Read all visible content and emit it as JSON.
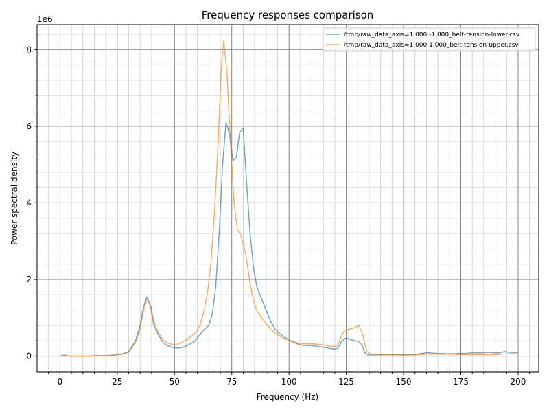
{
  "chart_data": {
    "type": "line",
    "title": "Frequency responses comparison",
    "xlabel": "Frequency (Hz)",
    "ylabel": "Power spectral density",
    "y_scale_label": "1e6",
    "xlim": [
      -10,
      209
    ],
    "ylim": [
      -0.42,
      8.65
    ],
    "x_ticks": [
      0,
      25,
      50,
      75,
      100,
      125,
      150,
      175,
      200
    ],
    "x_tick_labels": [
      "0",
      "25",
      "50",
      "75",
      "100",
      "125",
      "150",
      "175",
      "200"
    ],
    "y_ticks": [
      0,
      2,
      4,
      6,
      8
    ],
    "y_tick_labels": [
      "0",
      "2",
      "4",
      "6",
      "8"
    ],
    "grid": true,
    "legend_position": "top-right",
    "series": [
      {
        "name": "/tmp/raw_data_axis=1.000,-1.000_belt-tension-lower.csv",
        "color": "#1f77b4",
        "x": [
          0,
          2,
          4,
          8,
          12,
          16,
          20,
          24,
          27,
          30,
          33,
          35,
          36.5,
          38,
          39.5,
          41,
          43,
          45,
          47,
          49,
          51,
          53,
          55,
          57,
          59,
          61,
          63,
          65,
          66.5,
          68,
          69.5,
          71,
          72.5,
          74,
          75.5,
          77,
          78.5,
          80,
          81.5,
          83,
          84.5,
          86,
          88,
          90,
          92,
          94,
          96,
          98,
          100,
          102,
          104,
          106,
          108,
          110,
          112,
          114,
          116,
          118,
          120,
          121.5,
          123,
          124.5,
          126,
          127.5,
          129,
          130.5,
          132,
          133,
          134,
          136,
          140,
          145,
          150,
          155,
          160,
          165,
          170,
          175,
          178,
          180,
          183,
          186,
          188,
          190,
          192,
          194,
          196,
          198,
          200
        ],
        "y": [
          0,
          0.02,
          0,
          0,
          0,
          0.01,
          0.01,
          0.03,
          0.05,
          0.12,
          0.4,
          0.8,
          1.3,
          1.55,
          1.3,
          0.8,
          0.55,
          0.35,
          0.27,
          0.23,
          0.21,
          0.22,
          0.26,
          0.32,
          0.4,
          0.55,
          0.7,
          0.8,
          1.1,
          1.8,
          3.2,
          5.0,
          6.1,
          5.8,
          5.1,
          5.2,
          5.85,
          5.95,
          4.5,
          3.2,
          2.3,
          1.8,
          1.5,
          1.2,
          0.9,
          0.7,
          0.58,
          0.5,
          0.42,
          0.36,
          0.31,
          0.28,
          0.28,
          0.27,
          0.26,
          0.24,
          0.22,
          0.2,
          0.18,
          0.22,
          0.38,
          0.46,
          0.46,
          0.42,
          0.4,
          0.38,
          0.28,
          0.1,
          0.04,
          0.03,
          0.03,
          0.04,
          0.03,
          0.04,
          0.09,
          0.07,
          0.06,
          0.07,
          0.07,
          0.09,
          0.08,
          0.09,
          0.1,
          0.08,
          0.09,
          0.12,
          0.1,
          0.1,
          0.1
        ]
      },
      {
        "name": "/tmp/raw_data_axis=1.000,1.000_belt-tension-upper.csv",
        "color": "#ff7f0e",
        "x": [
          0,
          2,
          4,
          8,
          12,
          16,
          20,
          24,
          27,
          30,
          33,
          35,
          36.5,
          38,
          39.5,
          41,
          43,
          45,
          47,
          49,
          51,
          53,
          55,
          57,
          59,
          61,
          63,
          64.5,
          66,
          67.5,
          69,
          70.5,
          71.5,
          73,
          74.5,
          76,
          77.5,
          79,
          81,
          83,
          84.5,
          86,
          88,
          90,
          92,
          94,
          96,
          98,
          100,
          102,
          104,
          106,
          108,
          110,
          112,
          114,
          116,
          118,
          120,
          121.5,
          123,
          124.5,
          126,
          127.5,
          129,
          130.5,
          132,
          133,
          134,
          135,
          138,
          142,
          146,
          150,
          155,
          160,
          165,
          170,
          175,
          180,
          185,
          190,
          194,
          196,
          198,
          200
        ],
        "y": [
          0,
          0.03,
          0,
          0,
          0,
          0.01,
          0.01,
          0.03,
          0.05,
          0.1,
          0.35,
          0.7,
          1.2,
          1.48,
          1.35,
          0.9,
          0.6,
          0.42,
          0.34,
          0.3,
          0.3,
          0.35,
          0.42,
          0.5,
          0.6,
          0.78,
          1.2,
          1.7,
          2.5,
          3.8,
          5.5,
          7.6,
          8.25,
          7.3,
          5.5,
          4.0,
          3.3,
          3.15,
          2.7,
          1.9,
          1.45,
          1.18,
          1.0,
          0.85,
          0.7,
          0.6,
          0.52,
          0.46,
          0.42,
          0.38,
          0.34,
          0.32,
          0.32,
          0.32,
          0.31,
          0.3,
          0.28,
          0.26,
          0.25,
          0.3,
          0.55,
          0.68,
          0.7,
          0.72,
          0.75,
          0.8,
          0.6,
          0.35,
          0.12,
          0.06,
          0.04,
          0.04,
          0.03,
          0.03,
          0.03,
          0.05,
          0.05,
          0.05,
          0.04,
          0.04,
          0.04,
          0.04,
          0.06,
          0.06,
          0.07,
          0.1
        ]
      }
    ]
  }
}
